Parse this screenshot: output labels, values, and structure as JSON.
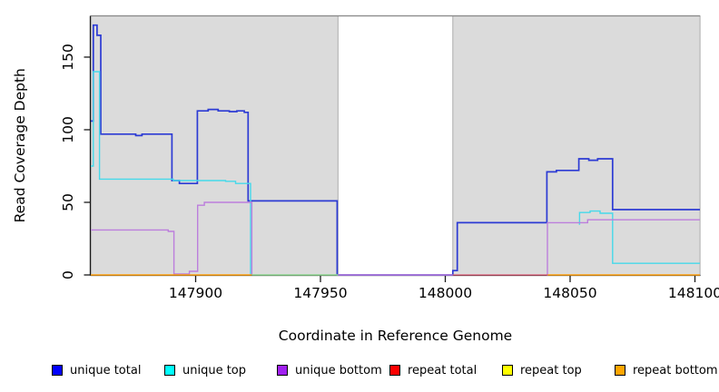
{
  "chart_data": {
    "type": "line",
    "title": "",
    "xlabel": "Coordinate in Reference Genome",
    "ylabel": "Read Coverage Depth",
    "xlim": [
      147858,
      148102
    ],
    "ylim": [
      0,
      178.4
    ],
    "x_ticks": [
      147900,
      147950,
      148000,
      148050,
      148100
    ],
    "y_ticks": [
      0,
      50,
      100,
      150
    ],
    "grid": false,
    "panel_color": "#DBDBDB",
    "panel_border_color": "#ACACAC",
    "box_top_color": "#868686",
    "axis_color": "#1a1a1a",
    "background_panels": [
      {
        "from": 147858,
        "to": 147957
      },
      {
        "from": 148003,
        "to": 148102
      }
    ],
    "series": [
      {
        "name": "unique-total",
        "label": "unique total",
        "color": "#2C3BD4",
        "width": 1.7,
        "segments": [
          [
            [
              147858,
              106
            ],
            [
              147859,
              172
            ],
            [
              147860.5,
              165
            ],
            [
              147862,
              97
            ],
            [
              147876,
              96
            ],
            [
              147878.5,
              97
            ],
            [
              147890.5,
              65
            ],
            [
              147893.5,
              63
            ],
            [
              147900.7,
              113
            ],
            [
              147905,
              114
            ],
            [
              147909,
              113
            ],
            [
              147913.5,
              112.5
            ],
            [
              147916.5,
              113
            ],
            [
              147919.5,
              112
            ],
            [
              147921,
              51
            ],
            [
              147956.7,
              0
            ],
            [
              148003,
              3
            ],
            [
              148004.8,
              36
            ],
            [
              148040.7,
              71
            ],
            [
              148044.5,
              72
            ],
            [
              148053.5,
              80
            ],
            [
              148057.5,
              79
            ],
            [
              148061,
              80
            ],
            [
              148067,
              45
            ],
            [
              148102,
              45
            ]
          ]
        ]
      },
      {
        "name": "unique-top",
        "label": "unique top",
        "color": "#45D9EA",
        "width": 1.4,
        "segments": [
          [
            [
              147858,
              75
            ],
            [
              147859,
              140
            ],
            [
              147861.5,
              66
            ],
            [
              147891,
              65
            ],
            [
              147912,
              64.5
            ],
            [
              147916,
              63
            ],
            [
              147922,
              0
            ]
          ],
          [
            [
              148053.5,
              35
            ],
            [
              148053.8,
              43
            ],
            [
              148058,
              44
            ],
            [
              148062,
              42.5
            ],
            [
              148067,
              8
            ],
            [
              148102,
              8
            ]
          ]
        ]
      },
      {
        "name": "unique-bottom",
        "label": "unique bottom",
        "color": "#BC7EDC",
        "width": 1.4,
        "segments": [
          [
            [
              147858,
              31
            ],
            [
              147889,
              30
            ],
            [
              147891.3,
              0.6
            ],
            [
              147897.5,
              2.5
            ],
            [
              147900.8,
              48
            ],
            [
              147903.5,
              50
            ],
            [
              147922.5,
              0
            ]
          ],
          [
            [
              147956.7,
              0
            ],
            [
              148003,
              0
            ]
          ],
          [
            [
              148040.6,
              0
            ],
            [
              148040.9,
              36
            ],
            [
              148057,
              38
            ],
            [
              148102,
              38
            ]
          ]
        ]
      },
      {
        "name": "repeat-total",
        "label": "repeat total",
        "color": "#E05C78",
        "width": 1.3,
        "segments": [
          [
            [
              148003,
              0
            ],
            [
              148041,
              0
            ]
          ]
        ]
      },
      {
        "name": "repeat-top",
        "label": "repeat top",
        "color": "#F2F20A",
        "width": 1.3,
        "segments": []
      },
      {
        "name": "repeat-bottom",
        "label": "repeat bottom",
        "color": "#FFA113",
        "width": 1.5,
        "segments": [
          [
            [
              147858,
              0
            ],
            [
              147922.5,
              0
            ]
          ],
          [
            [
              148041,
              0
            ],
            [
              148102,
              0
            ]
          ]
        ]
      }
    ],
    "zero_line_segments": [
      {
        "name": "zero-blend-green",
        "color": "#8FD792",
        "from": 147922.5,
        "to": 147957,
        "value": 0
      }
    ],
    "legend": {
      "position": "bottom",
      "entries": [
        {
          "label": "unique total",
          "color": "#0000FF"
        },
        {
          "label": "unique top",
          "color": "#00FFFF"
        },
        {
          "label": "unique bottom",
          "color": "#A020F0"
        },
        {
          "label": "repeat total",
          "color": "#FF0000"
        },
        {
          "label": "repeat top",
          "color": "#FFFF00"
        },
        {
          "label": "repeat bottom",
          "color": "#FFA500"
        }
      ]
    }
  }
}
